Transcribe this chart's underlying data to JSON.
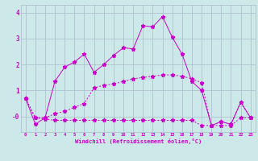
{
  "xlabel": "Windchill (Refroidissement éolien,°C)",
  "x": [
    0,
    1,
    2,
    3,
    4,
    5,
    6,
    7,
    8,
    9,
    10,
    11,
    12,
    13,
    14,
    15,
    16,
    17,
    18,
    19,
    20,
    21,
    22,
    23
  ],
  "line1": [
    0.7,
    -0.3,
    -0.05,
    1.35,
    1.9,
    2.1,
    2.4,
    1.7,
    2.0,
    2.35,
    2.65,
    2.6,
    3.5,
    3.45,
    3.85,
    3.05,
    2.4,
    1.35,
    1.0,
    -0.35,
    -0.2,
    -0.3,
    0.55,
    -0.05
  ],
  "line2": [
    0.7,
    -0.05,
    -0.05,
    0.1,
    0.2,
    0.35,
    0.5,
    1.1,
    1.2,
    1.25,
    1.35,
    1.45,
    1.5,
    1.55,
    1.6,
    1.6,
    1.55,
    1.45,
    1.3,
    -0.35,
    -0.2,
    -0.3,
    0.55,
    -0.05
  ],
  "line3": [
    0.7,
    -0.05,
    -0.1,
    -0.15,
    -0.15,
    -0.15,
    -0.15,
    -0.15,
    -0.15,
    -0.15,
    -0.15,
    -0.15,
    -0.15,
    -0.15,
    -0.15,
    -0.15,
    -0.15,
    -0.15,
    -0.35,
    -0.35,
    -0.35,
    -0.35,
    -0.05,
    -0.05
  ],
  "line_color": "#cc00cc",
  "bg_color": "#cce8e8",
  "grid_color": "#aabbcc",
  "ylim": [
    -0.6,
    4.3
  ],
  "figw": 3.2,
  "figh": 2.0,
  "dpi": 100
}
